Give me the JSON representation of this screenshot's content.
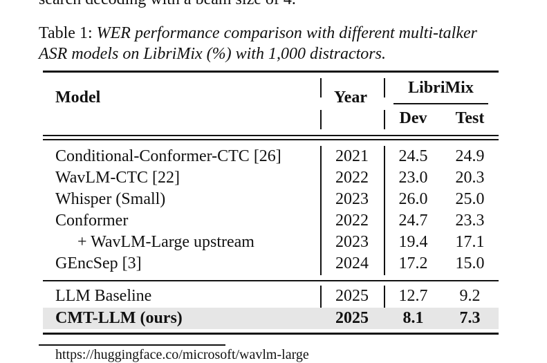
{
  "top_text": "search decoding with a beam size of 4.",
  "caption": {
    "label": "Table 1:",
    "text": "WER performance comparison with different multi-talker ASR models on LibriMix (%) with 1,000 distractors."
  },
  "table": {
    "headers": {
      "model": "Model",
      "year": "Year",
      "group": "LibriMix",
      "dev": "Dev",
      "test": "Test"
    },
    "rows": [
      {
        "model": "Conditional-Conformer-CTC [26]",
        "year": "2021",
        "dev": "24.5",
        "test": "24.9"
      },
      {
        "model": "WavLM-CTC [22]",
        "year": "2022",
        "dev": "23.0",
        "test": "20.3"
      },
      {
        "model": "Whisper (Small)",
        "year": "2023",
        "dev": "26.0",
        "test": "25.0"
      },
      {
        "model": "Conformer",
        "year": "2022",
        "dev": "24.7",
        "test": "23.3"
      },
      {
        "model": "+ WavLM-Large upstream",
        "year": "2023",
        "dev": "19.4",
        "test": "17.1"
      },
      {
        "model": "GEncSep [3]",
        "year": "2024",
        "dev": "17.2",
        "test": "15.0"
      },
      {
        "model": "LLM Baseline",
        "year": "2025",
        "dev": "12.7",
        "test": "9.2"
      },
      {
        "model": "CMT-LLM (ours)",
        "year": "2025",
        "dev": "8.1",
        "test": "7.3"
      }
    ]
  },
  "footnote": "https://huggingface.co/microsoft/wavlm-large"
}
